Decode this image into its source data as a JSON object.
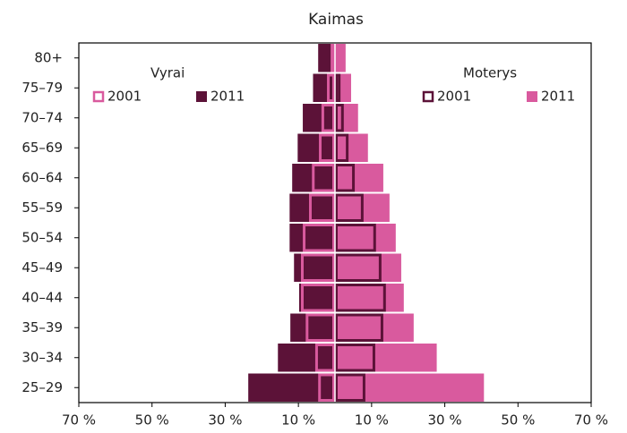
{
  "chart_data": {
    "type": "pyramid",
    "title": "Kaimas",
    "categories": [
      "25–29",
      "30–34",
      "35–39",
      "40–44",
      "45–49",
      "50–54",
      "55–59",
      "60–64",
      "65–69",
      "70–74",
      "75–79",
      "80+"
    ],
    "xlim": [
      -70,
      70
    ],
    "xticks": [
      {
        "value": -70,
        "label": "70 %"
      },
      {
        "value": -50,
        "label": "50 %"
      },
      {
        "value": -30,
        "label": "30 %"
      },
      {
        "value": -10,
        "label": "10 %"
      },
      {
        "value": 10,
        "label": "10 %"
      },
      {
        "value": 30,
        "label": "30 %"
      },
      {
        "value": 50,
        "label": "50 %"
      },
      {
        "value": 70,
        "label": "70 %"
      }
    ],
    "groups": [
      {
        "name": "Vyrai",
        "series": [
          {
            "name": "2001",
            "color": "#d95a9e",
            "style": "outline",
            "values": [
              -4.6,
              -5.4,
              -8.0,
              -9.3,
              -9.3,
              -8.8,
              -7.1,
              -6.3,
              -4.4,
              -3.7,
              -2.2,
              -1.2
            ]
          },
          {
            "name": "2011",
            "color": "#5c1238",
            "style": "fill",
            "values": [
              -23.7,
              -15.6,
              -12.2,
              -9.8,
              -11.2,
              -12.4,
              -12.4,
              -11.7,
              -10.2,
              -8.8,
              -6.0,
              -4.6
            ]
          }
        ]
      },
      {
        "name": "Moterys",
        "series": [
          {
            "name": "2001",
            "color": "#5c1238",
            "style": "outline",
            "values": [
              8.3,
              11.0,
              13.2,
              13.9,
              12.7,
              11.2,
              7.8,
              5.4,
              3.7,
              2.4,
              1.5,
              0.7
            ]
          },
          {
            "name": "2011",
            "color": "#d95a9e",
            "style": "fill",
            "values": [
              40.7,
              27.8,
              21.5,
              18.8,
              18.1,
              16.6,
              14.9,
              13.2,
              9.0,
              6.3,
              4.4,
              2.9
            ]
          }
        ]
      }
    ]
  }
}
